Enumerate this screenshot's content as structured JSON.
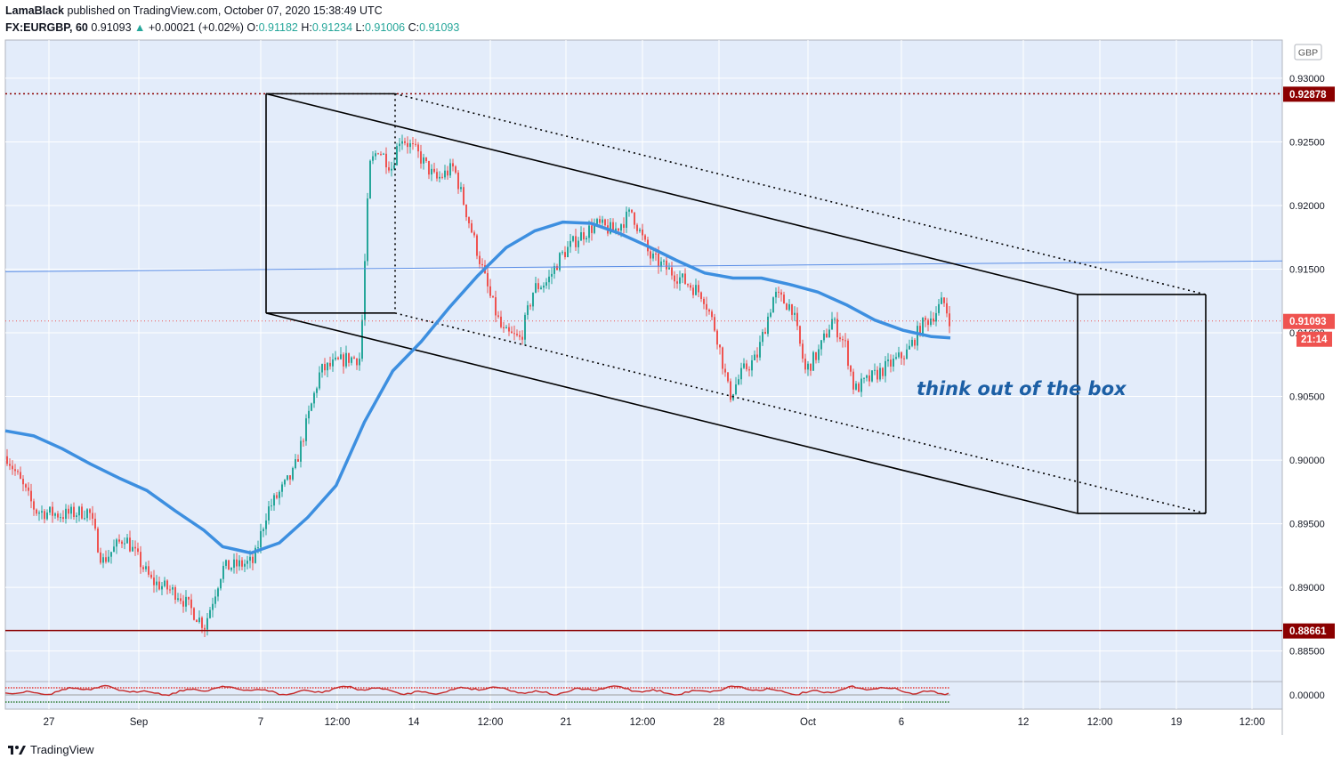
{
  "header": {
    "author": "LamaBlack",
    "published_text": "published on TradingView.com, October 07, 2020 15:38:49 UTC",
    "symbol": "FX:EURGBP, 60",
    "last": "0.91093",
    "arrow": "▲",
    "change": "+0.00021 (+0.02%)",
    "o_label": "O:",
    "o_value": "0.91182",
    "h_label": "H:",
    "h_value": "0.91234",
    "l_label": "L:",
    "l_value": "0.91006",
    "c_label": "C:",
    "c_value": "0.91093"
  },
  "annotation": "think out of the box",
  "footer": {
    "brand": "TradingView"
  },
  "colors": {
    "background": "#e3ecfa",
    "up": "#26a69a",
    "down": "#ef5350",
    "ma": "#3d8fe0",
    "level": "#8b0000",
    "annotation": "#1c5fa5"
  },
  "chart_data": {
    "type": "candlestick",
    "currency_label": "GBP",
    "ylim": [
      0.8826,
      0.933
    ],
    "y_ticks": [
      "0.93000",
      "0.92500",
      "0.92000",
      "0.91500",
      "0.91000",
      "0.90500",
      "0.90000",
      "0.89500",
      "0.89000",
      "0.88500"
    ],
    "x_ticks": [
      "27",
      "Sep",
      "7",
      "12:00",
      "14",
      "12:00",
      "21",
      "12:00",
      "28",
      "Oct",
      "6",
      "12",
      "12:00",
      "19",
      "12:00"
    ],
    "price_labels": [
      {
        "id": "resistance",
        "text": "0.92878",
        "value": 0.92878
      },
      {
        "id": "last",
        "text": "0.91093",
        "value": 0.91093
      },
      {
        "id": "support",
        "text": "0.88661",
        "value": 0.88661
      }
    ],
    "countdown": "21:14",
    "levels": [
      {
        "name": "resistance",
        "value": 0.92878,
        "style": "dotted"
      },
      {
        "name": "support",
        "value": 0.88661,
        "style": "solid"
      }
    ],
    "moving_average_path": [
      [
        0,
        0.9023
      ],
      [
        0.03,
        0.9019
      ],
      [
        0.06,
        0.9009
      ],
      [
        0.09,
        0.8997
      ],
      [
        0.12,
        0.8986
      ],
      [
        0.15,
        0.8976
      ],
      [
        0.18,
        0.896
      ],
      [
        0.21,
        0.8945
      ],
      [
        0.23,
        0.8932
      ],
      [
        0.26,
        0.8927
      ],
      [
        0.29,
        0.8935
      ],
      [
        0.32,
        0.8955
      ],
      [
        0.35,
        0.898
      ],
      [
        0.38,
        0.903
      ],
      [
        0.41,
        0.907
      ],
      [
        0.44,
        0.9093
      ],
      [
        0.47,
        0.912
      ],
      [
        0.5,
        0.9145
      ],
      [
        0.53,
        0.9167
      ],
      [
        0.56,
        0.918
      ],
      [
        0.59,
        0.9187
      ],
      [
        0.62,
        0.9186
      ],
      [
        0.65,
        0.9178
      ],
      [
        0.68,
        0.9168
      ],
      [
        0.71,
        0.9157
      ],
      [
        0.74,
        0.9147
      ],
      [
        0.77,
        0.9143
      ],
      [
        0.8,
        0.9143
      ],
      [
        0.83,
        0.9138
      ],
      [
        0.86,
        0.9132
      ],
      [
        0.89,
        0.9122
      ],
      [
        0.92,
        0.911
      ],
      [
        0.95,
        0.9102
      ],
      [
        0.98,
        0.9097
      ],
      [
        1.0,
        0.9096
      ]
    ],
    "oscillator": {
      "zero_label": "0.00000"
    }
  }
}
